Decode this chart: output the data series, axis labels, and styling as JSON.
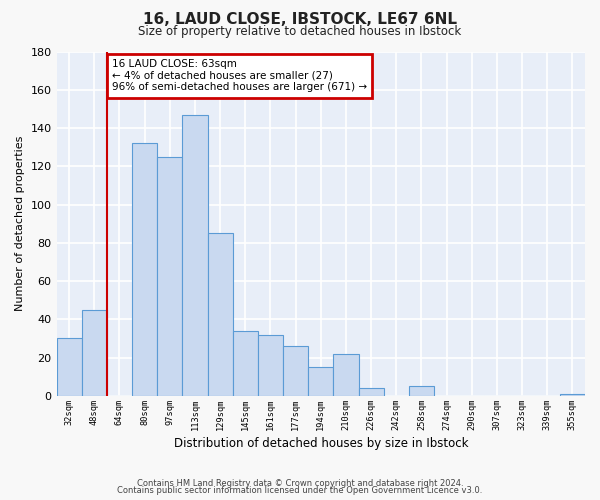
{
  "title": "16, LAUD CLOSE, IBSTOCK, LE67 6NL",
  "subtitle": "Size of property relative to detached houses in Ibstock",
  "xlabel": "Distribution of detached houses by size in Ibstock",
  "ylabel": "Number of detached properties",
  "bar_labels": [
    "32sqm",
    "48sqm",
    "64sqm",
    "80sqm",
    "97sqm",
    "113sqm",
    "129sqm",
    "145sqm",
    "161sqm",
    "177sqm",
    "194sqm",
    "210sqm",
    "226sqm",
    "242sqm",
    "258sqm",
    "274sqm",
    "290sqm",
    "307sqm",
    "323sqm",
    "339sqm",
    "355sqm"
  ],
  "bar_values": [
    30,
    45,
    0,
    132,
    125,
    147,
    85,
    34,
    32,
    26,
    15,
    22,
    4,
    0,
    5,
    0,
    0,
    0,
    0,
    0,
    1
  ],
  "bar_color": "#c9d9f0",
  "bar_edge_color": "#5b9bd5",
  "annotation_title": "16 LAUD CLOSE: 63sqm",
  "annotation_line1": "← 4% of detached houses are smaller (27)",
  "annotation_line2": "96% of semi-detached houses are larger (671) →",
  "annotation_box_color": "#ffffff",
  "annotation_box_edge_color": "#cc0000",
  "vline_color": "#cc0000",
  "ylim": [
    0,
    180
  ],
  "yticks": [
    0,
    20,
    40,
    60,
    80,
    100,
    120,
    140,
    160,
    180
  ],
  "footer1": "Contains HM Land Registry data © Crown copyright and database right 2024.",
  "footer2": "Contains public sector information licensed under the Open Government Licence v3.0.",
  "bg_color": "#e8eef8",
  "plot_bg_color": "#e8eef8",
  "grid_color": "#ffffff"
}
